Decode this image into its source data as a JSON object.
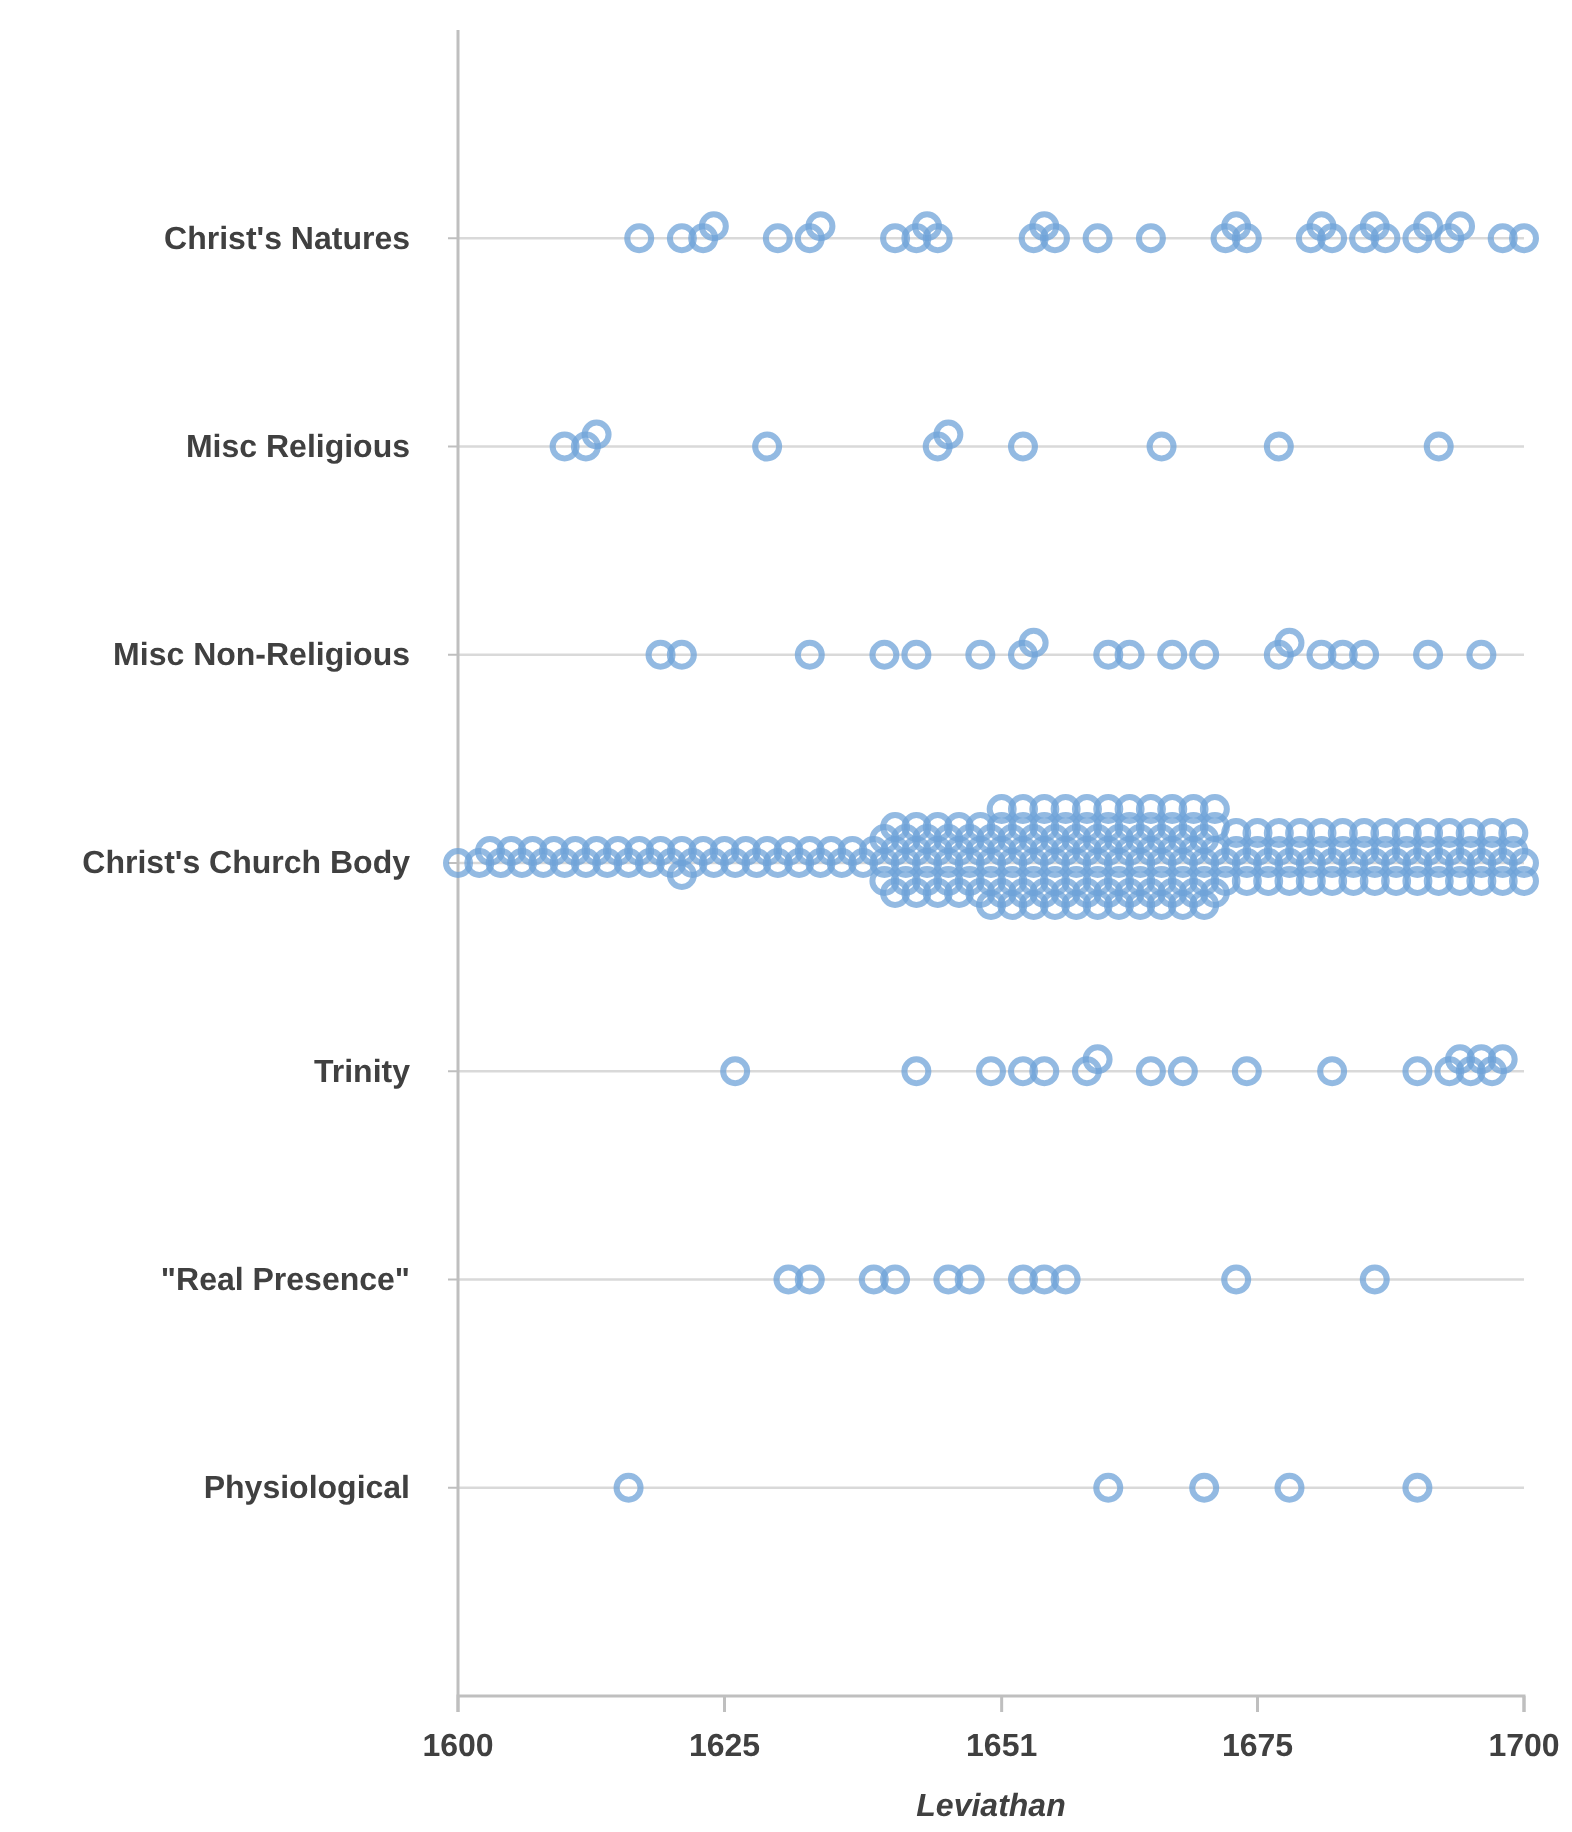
{
  "chart_data": {
    "type": "scatter",
    "orientation": "horizontal",
    "xlabel": "Leviathan",
    "categories": [
      "Christ's Natures",
      "Misc Religious",
      "Misc Non-Religious",
      "Christ's Church Body",
      "Trinity",
      "\"Real Presence\"",
      "Physiological"
    ],
    "xlim": [
      1600,
      1700
    ],
    "xticks": [
      1600,
      1625,
      1651,
      1675,
      1700
    ],
    "grid": "y",
    "marker": "circle",
    "series": [
      {
        "color": "#6fa3d8",
        "values": [
          1617,
          1621,
          1623,
          1624,
          1630,
          1633,
          1634,
          1641,
          1643,
          1644,
          1645,
          1654,
          1655,
          1656,
          1660,
          1665,
          1672,
          1673,
          1674,
          1680,
          1681,
          1682,
          1685,
          1686,
          1687,
          1690,
          1691,
          1693,
          1694,
          1698,
          1700
        ],
        "x": [
          "Christ's Natures",
          "Christ's Natures",
          "Christ's Natures",
          "Christ's Natures",
          "Christ's Natures",
          "Christ's Natures",
          "Christ's Natures",
          "Christ's Natures",
          "Christ's Natures",
          "Christ's Natures",
          "Christ's Natures",
          "Christ's Natures",
          "Christ's Natures",
          "Christ's Natures",
          "Christ's Natures",
          "Christ's Natures",
          "Christ's Natures",
          "Christ's Natures",
          "Christ's Natures",
          "Christ's Natures",
          "Christ's Natures",
          "Christ's Natures",
          "Christ's Natures",
          "Christ's Natures",
          "Christ's Natures",
          "Christ's Natures",
          "Christ's Natures",
          "Christ's Natures",
          "Christ's Natures",
          "Christ's Natures",
          "Christ's Natures"
        ]
      },
      {
        "color": "#6fa3d8",
        "values": [
          1610,
          1612,
          1613,
          1629,
          1645,
          1646,
          1653,
          1666,
          1677,
          1692
        ],
        "x": [
          "Misc Religious",
          "Misc Religious",
          "Misc Religious",
          "Misc Religious",
          "Misc Religious",
          "Misc Religious",
          "Misc Religious",
          "Misc Religious",
          "Misc Religious",
          "Misc Religious"
        ]
      },
      {
        "color": "#6fa3d8",
        "values": [
          1619,
          1621,
          1633,
          1640,
          1643,
          1649,
          1653,
          1654,
          1661,
          1663,
          1667,
          1670,
          1677,
          1678,
          1681,
          1683,
          1685,
          1691,
          1696
        ],
        "x": [
          "Misc Non-Religious",
          "Misc Non-Religious",
          "Misc Non-Religious",
          "Misc Non-Religious",
          "Misc Non-Religious",
          "Misc Non-Religious",
          "Misc Non-Religious",
          "Misc Non-Religious",
          "Misc Non-Religious",
          "Misc Non-Religious",
          "Misc Non-Religious",
          "Misc Non-Religious",
          "Misc Non-Religious",
          "Misc Non-Religious",
          "Misc Non-Religious",
          "Misc Non-Religious",
          "Misc Non-Religious",
          "Misc Non-Religious",
          "Misc Non-Religious"
        ]
      },
      {
        "color": "#6fa3d8",
        "values": [
          1600,
          1602,
          1603,
          1604,
          1605,
          1606,
          1607,
          1608,
          1609,
          1610,
          1611,
          1612,
          1613,
          1614,
          1615,
          1616,
          1617,
          1618,
          1619,
          1620,
          1621,
          1621,
          1622,
          1623,
          1624,
          1625,
          1626,
          1627,
          1628,
          1629,
          1630,
          1631,
          1632,
          1633,
          1634,
          1635,
          1636,
          1637,
          1638,
          1639
        ],
        "x": [
          "Christ's Church Body",
          "Christ's Church Body",
          "Christ's Church Body",
          "Christ's Church Body",
          "Christ's Church Body",
          "Christ's Church Body",
          "Christ's Church Body",
          "Christ's Church Body",
          "Christ's Church Body",
          "Christ's Church Body",
          "Christ's Church Body",
          "Christ's Church Body",
          "Christ's Church Body",
          "Christ's Church Body",
          "Christ's Church Body",
          "Christ's Church Body",
          "Christ's Church Body",
          "Christ's Church Body",
          "Christ's Church Body",
          "Christ's Church Body",
          "Christ's Church Body",
          "Christ's Church Body",
          "Christ's Church Body",
          "Christ's Church Body",
          "Christ's Church Body",
          "Christ's Church Body",
          "Christ's Church Body",
          "Christ's Church Body",
          "Christ's Church Body",
          "Christ's Church Body",
          "Christ's Church Body",
          "Christ's Church Body",
          "Christ's Church Body",
          "Christ's Church Body",
          "Christ's Church Body",
          "Christ's Church Body",
          "Christ's Church Body",
          "Christ's Church Body",
          "Christ's Church Body",
          "Christ's Church Body"
        ]
      },
      {
        "color": "#6fa3d8",
        "values": [
          1640,
          1640,
          1640,
          1641,
          1641,
          1641,
          1642,
          1642,
          1642,
          1643,
          1643,
          1643,
          1644,
          1644,
          1644,
          1645,
          1645,
          1645,
          1646,
          1646,
          1646,
          1647,
          1647,
          1647,
          1648,
          1648,
          1648,
          1649,
          1649,
          1649
        ],
        "x": [
          "Christ's Church Body",
          "Christ's Church Body",
          "Christ's Church Body",
          "Christ's Church Body",
          "Christ's Church Body",
          "Christ's Church Body",
          "Christ's Church Body",
          "Christ's Church Body",
          "Christ's Church Body",
          "Christ's Church Body",
          "Christ's Church Body",
          "Christ's Church Body",
          "Christ's Church Body",
          "Christ's Church Body",
          "Christ's Church Body",
          "Christ's Church Body",
          "Christ's Church Body",
          "Christ's Church Body",
          "Christ's Church Body",
          "Christ's Church Body",
          "Christ's Church Body",
          "Christ's Church Body",
          "Christ's Church Body",
          "Christ's Church Body",
          "Christ's Church Body",
          "Christ's Church Body",
          "Christ's Church Body",
          "Christ's Church Body",
          "Christ's Church Body",
          "Christ's Church Body"
        ]
      },
      {
        "color": "#6fa3d8",
        "values": [
          1650,
          1650,
          1650,
          1650,
          1651,
          1651,
          1651,
          1651,
          1652,
          1652,
          1652,
          1652,
          1653,
          1653,
          1653,
          1653,
          1654,
          1654,
          1654,
          1654,
          1655,
          1655,
          1655,
          1655,
          1656,
          1656,
          1656,
          1656,
          1657,
          1657,
          1657,
          1657,
          1658,
          1658,
          1658,
          1658,
          1659,
          1659,
          1659,
          1659,
          1660,
          1660,
          1660,
          1660
        ],
        "x": [
          "Christ's Church Body",
          "Christ's Church Body",
          "Christ's Church Body",
          "Christ's Church Body",
          "Christ's Church Body",
          "Christ's Church Body",
          "Christ's Church Body",
          "Christ's Church Body",
          "Christ's Church Body",
          "Christ's Church Body",
          "Christ's Church Body",
          "Christ's Church Body",
          "Christ's Church Body",
          "Christ's Church Body",
          "Christ's Church Body",
          "Christ's Church Body",
          "Christ's Church Body",
          "Christ's Church Body",
          "Christ's Church Body",
          "Christ's Church Body",
          "Christ's Church Body",
          "Christ's Church Body",
          "Christ's Church Body",
          "Christ's Church Body",
          "Christ's Church Body",
          "Christ's Church Body",
          "Christ's Church Body",
          "Christ's Church Body",
          "Christ's Church Body",
          "Christ's Church Body",
          "Christ's Church Body",
          "Christ's Church Body",
          "Christ's Church Body",
          "Christ's Church Body",
          "Christ's Church Body",
          "Christ's Church Body",
          "Christ's Church Body",
          "Christ's Church Body",
          "Christ's Church Body",
          "Christ's Church Body",
          "Christ's Church Body",
          "Christ's Church Body",
          "Christ's Church Body",
          "Christ's Church Body"
        ]
      },
      {
        "color": "#6fa3d8",
        "values": [
          1661,
          1661,
          1661,
          1661,
          1662,
          1662,
          1662,
          1662,
          1663,
          1663,
          1663,
          1663,
          1664,
          1664,
          1664,
          1664,
          1665,
          1665,
          1665,
          1665,
          1666,
          1666,
          1666,
          1666,
          1667,
          1667,
          1667,
          1667,
          1668,
          1668,
          1668,
          1668,
          1669,
          1669,
          1669,
          1669,
          1670,
          1670,
          1670,
          1670,
          1671,
          1671,
          1671,
          1671
        ],
        "x": [
          "Christ's Church Body",
          "Christ's Church Body",
          "Christ's Church Body",
          "Christ's Church Body",
          "Christ's Church Body",
          "Christ's Church Body",
          "Christ's Church Body",
          "Christ's Church Body",
          "Christ's Church Body",
          "Christ's Church Body",
          "Christ's Church Body",
          "Christ's Church Body",
          "Christ's Church Body",
          "Christ's Church Body",
          "Christ's Church Body",
          "Christ's Church Body",
          "Christ's Church Body",
          "Christ's Church Body",
          "Christ's Church Body",
          "Christ's Church Body",
          "Christ's Church Body",
          "Christ's Church Body",
          "Christ's Church Body",
          "Christ's Church Body",
          "Christ's Church Body",
          "Christ's Church Body",
          "Christ's Church Body",
          "Christ's Church Body",
          "Christ's Church Body",
          "Christ's Church Body",
          "Christ's Church Body",
          "Christ's Church Body",
          "Christ's Church Body",
          "Christ's Church Body",
          "Christ's Church Body",
          "Christ's Church Body",
          "Christ's Church Body",
          "Christ's Church Body",
          "Christ's Church Body",
          "Christ's Church Body",
          "Christ's Church Body",
          "Christ's Church Body",
          "Christ's Church Body",
          "Christ's Church Body"
        ]
      },
      {
        "color": "#6fa3d8",
        "values": [
          1672,
          1672,
          1673,
          1673,
          1674,
          1674,
          1675,
          1675,
          1676,
          1676,
          1677,
          1677,
          1678,
          1678,
          1679,
          1679,
          1680,
          1680,
          1681,
          1681,
          1682,
          1682,
          1683,
          1683,
          1684,
          1684,
          1685,
          1685
        ],
        "x": [
          "Christ's Church Body",
          "Christ's Church Body",
          "Christ's Church Body",
          "Christ's Church Body",
          "Christ's Church Body",
          "Christ's Church Body",
          "Christ's Church Body",
          "Christ's Church Body",
          "Christ's Church Body",
          "Christ's Church Body",
          "Christ's Church Body",
          "Christ's Church Body",
          "Christ's Church Body",
          "Christ's Church Body",
          "Christ's Church Body",
          "Christ's Church Body",
          "Christ's Church Body",
          "Christ's Church Body",
          "Christ's Church Body",
          "Christ's Church Body",
          "Christ's Church Body",
          "Christ's Church Body",
          "Christ's Church Body",
          "Christ's Church Body",
          "Christ's Church Body",
          "Christ's Church Body",
          "Christ's Church Body",
          "Christ's Church Body"
        ]
      },
      {
        "color": "#6fa3d8",
        "values": [
          1686,
          1686,
          1687,
          1687,
          1688,
          1688,
          1689,
          1689,
          1690,
          1690,
          1691,
          1691,
          1692,
          1692,
          1693,
          1693,
          1694,
          1694,
          1695,
          1695,
          1696,
          1696,
          1697,
          1697,
          1698,
          1698,
          1699,
          1699,
          1700,
          1700
        ],
        "x": [
          "Christ's Church Body",
          "Christ's Church Body",
          "Christ's Church Body",
          "Christ's Church Body",
          "Christ's Church Body",
          "Christ's Church Body",
          "Christ's Church Body",
          "Christ's Church Body",
          "Christ's Church Body",
          "Christ's Church Body",
          "Christ's Church Body",
          "Christ's Church Body",
          "Christ's Church Body",
          "Christ's Church Body",
          "Christ's Church Body",
          "Christ's Church Body",
          "Christ's Church Body",
          "Christ's Church Body",
          "Christ's Church Body",
          "Christ's Church Body",
          "Christ's Church Body",
          "Christ's Church Body",
          "Christ's Church Body",
          "Christ's Church Body",
          "Christ's Church Body",
          "Christ's Church Body",
          "Christ's Church Body",
          "Christ's Church Body",
          "Christ's Church Body",
          "Christ's Church Body"
        ]
      },
      {
        "color": "#6fa3d8",
        "values": [
          1626,
          1643,
          1650,
          1653,
          1655,
          1659,
          1660,
          1665,
          1668,
          1674,
          1682,
          1690,
          1693,
          1694,
          1695,
          1696,
          1697,
          1698
        ],
        "x": [
          "Trinity",
          "Trinity",
          "Trinity",
          "Trinity",
          "Trinity",
          "Trinity",
          "Trinity",
          "Trinity",
          "Trinity",
          "Trinity",
          "Trinity",
          "Trinity",
          "Trinity",
          "Trinity",
          "Trinity",
          "Trinity",
          "Trinity",
          "Trinity"
        ]
      },
      {
        "color": "#6fa3d8",
        "values": [
          1631,
          1633,
          1639,
          1641,
          1646,
          1648,
          1653,
          1655,
          1657,
          1673,
          1686
        ],
        "x": [
          "\"Real Presence\"",
          "\"Real Presence\"",
          "\"Real Presence\"",
          "\"Real Presence\"",
          "\"Real Presence\"",
          "\"Real Presence\"",
          "\"Real Presence\"",
          "\"Real Presence\"",
          "\"Real Presence\"",
          "\"Real Presence\"",
          "\"Real Presence\""
        ]
      },
      {
        "color": "#6fa3d8",
        "values": [
          1616,
          1661,
          1670,
          1678,
          1690
        ],
        "x": [
          "Physiological",
          "Physiological",
          "Physiological",
          "Physiological",
          "Physiological"
        ]
      }
    ]
  }
}
